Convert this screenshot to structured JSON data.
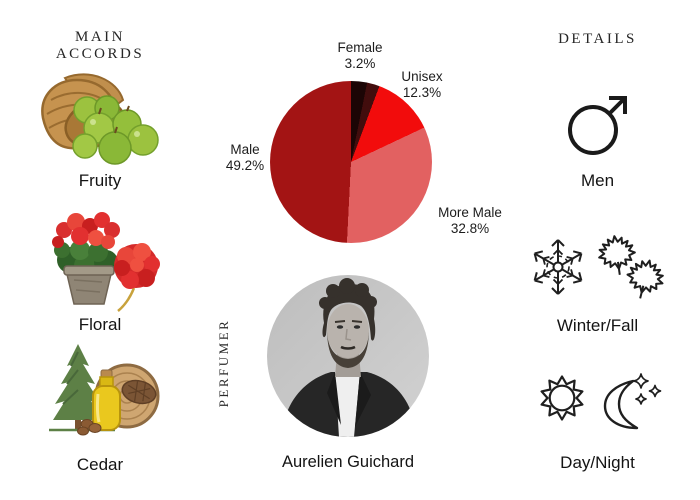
{
  "left_column": {
    "heading": "MAIN ACCORDS",
    "items": [
      {
        "label": "Fruity",
        "image": "basket-of-green-apples"
      },
      {
        "label": "Floral",
        "image": "red-geraniums-in-stone-pot"
      },
      {
        "label": "Cedar",
        "image": "cedar-tree-oil-bottle-pinecone-wood-slice"
      }
    ]
  },
  "center_column": {
    "perfumer_heading": "PERFUMER",
    "perfumer_name": "Aurelien Guichard",
    "photo": "black-and-white-portrait-of-perfumer"
  },
  "right_column": {
    "heading": "DETAILS",
    "items": [
      {
        "label": "Men",
        "icon": "mars-male-symbol"
      },
      {
        "label": "Winter/Fall",
        "icon": "snowflake-and-two-maple-leaves"
      },
      {
        "label": "Day/Night",
        "icon": "sun-and-crescent-moon-with-stars"
      }
    ]
  },
  "chart_data": {
    "type": "pie",
    "direction": "clockwise",
    "start_angle_deg": 0,
    "slices": [
      {
        "label": "Female",
        "pct_text": "3.2%",
        "value": 3.2,
        "color": "#1c0505"
      },
      {
        "label": "",
        "pct_text": "",
        "value": 2.5,
        "color": "#420d0d",
        "estimated": true
      },
      {
        "label": "Unisex",
        "pct_text": "12.3%",
        "value": 12.3,
        "color": "#f20c0c"
      },
      {
        "label": "More Male",
        "pct_text": "32.8%",
        "value": 32.8,
        "color": "#e26161"
      },
      {
        "label": "Male",
        "pct_text": "49.2%",
        "value": 49.2,
        "color": "#a31414"
      }
    ]
  }
}
